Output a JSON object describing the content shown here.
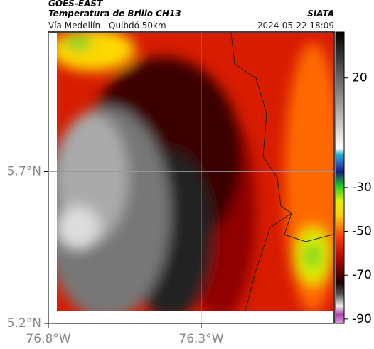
{
  "header": {
    "source": "GOES-EAST",
    "title": "Temperatura de Brillo CH13",
    "org": "SIATA",
    "route": "Vía Medellín - Quibdó 50km",
    "datetime": "2024-05-22 18:09"
  },
  "map": {
    "lonlim": [
      -76.8,
      -75.865
    ],
    "latlim": [
      5.2,
      6.16
    ],
    "lon_ticks": [
      {
        "value": -76.8,
        "label": "76.8°W"
      },
      {
        "value": -76.3,
        "label": "76.3°W"
      }
    ],
    "lat_ticks": [
      {
        "value": 5.7,
        "label": "5.7°N"
      },
      {
        "value": 5.2,
        "label": "5.2°N"
      }
    ]
  },
  "colorbar": {
    "lim": [
      -92,
      41
    ],
    "ticks": [
      20,
      -30,
      -50,
      -70,
      -90
    ]
  }
}
